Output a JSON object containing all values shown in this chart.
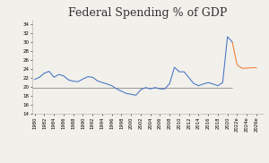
{
  "title": "Federal Spending % of GDP",
  "title_fontsize": 9,
  "background_color": "#f2f0eb",
  "line_color_actual": "#4472C4",
  "line_color_estimate": "#ED7D31",
  "hline_value": 19.8,
  "hline_color": "#888888",
  "ylim": [
    14,
    35
  ],
  "yticks": [
    14,
    16,
    18,
    20,
    22,
    24,
    26,
    28,
    30,
    32,
    34
  ],
  "actual_years": [
    1980,
    1981,
    1982,
    1983,
    1984,
    1985,
    1986,
    1987,
    1988,
    1989,
    1990,
    1991,
    1992,
    1993,
    1994,
    1995,
    1996,
    1997,
    1998,
    1999,
    2000,
    2001,
    2002,
    2003,
    2004,
    2005,
    2006,
    2007,
    2008,
    2009,
    2010,
    2011,
    2012,
    2013,
    2014,
    2015,
    2016,
    2017,
    2018,
    2019,
    2020,
    2021
  ],
  "actual_values": [
    21.7,
    22.2,
    23.1,
    23.5,
    22.2,
    22.8,
    22.5,
    21.6,
    21.3,
    21.2,
    21.8,
    22.3,
    22.2,
    21.4,
    21.0,
    20.7,
    20.3,
    19.6,
    19.1,
    18.6,
    18.4,
    18.2,
    19.4,
    19.9,
    19.6,
    19.9,
    19.6,
    19.6,
    20.8,
    24.4,
    23.4,
    23.4,
    22.1,
    20.8,
    20.3,
    20.7,
    21.0,
    20.7,
    20.3,
    21.0,
    31.2,
    30.0
  ],
  "estimate_years": [
    2021,
    2022,
    2023,
    2024,
    2025,
    2026
  ],
  "estimate_values": [
    30.0,
    24.9,
    24.2,
    24.2,
    24.3,
    24.3
  ],
  "xtick_positions": [
    1980,
    1982,
    1984,
    1986,
    1988,
    1990,
    1992,
    1994,
    1996,
    1998,
    2000,
    2002,
    2004,
    2006,
    2008,
    2010,
    2012,
    2014,
    2016,
    2018,
    2020,
    2022,
    2024,
    2026
  ],
  "xtick_labels": [
    "1980",
    "1982",
    "1984",
    "1986",
    "1988",
    "1990",
    "1992",
    "1994",
    "1996",
    "1998",
    "2000",
    "2002",
    "2004",
    "2006",
    "2008",
    "2010",
    "2012",
    "2014",
    "2016",
    "2018",
    "2020",
    "2022e",
    "2024e",
    "2026e"
  ],
  "xlim": [
    1979.5,
    2027.5
  ]
}
